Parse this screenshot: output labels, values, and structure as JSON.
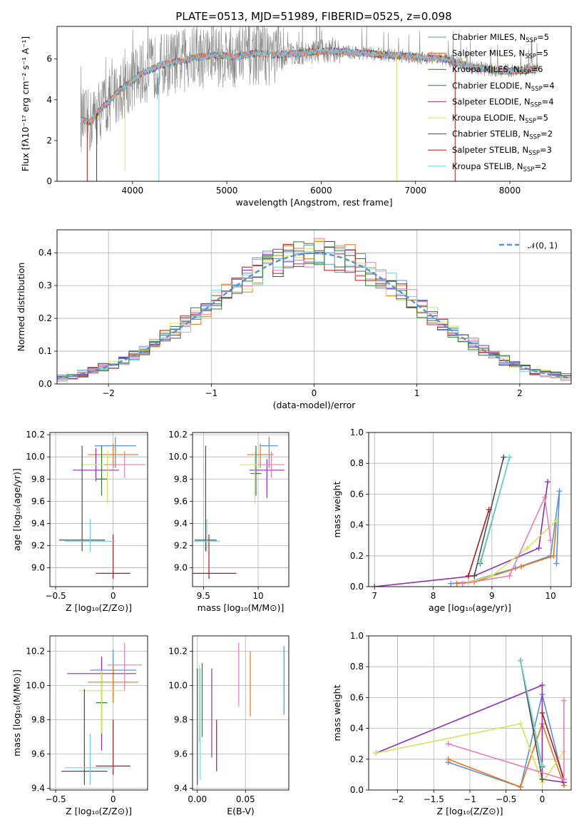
{
  "figure": {
    "title": "PLATE=0513, MJD=51989, FIBERID=0525, z=0.098"
  },
  "colors": [
    "#5b8fd8",
    "#e8761f",
    "#2f7d32",
    "#8c2fb5",
    "#d2e65a",
    "#4d4d4d",
    "#b01a1a",
    "#e57fb5",
    "#72d4de",
    "#888888"
  ],
  "legend_spectrum": [
    {
      "label": "Chabrier MILES, N",
      "sub": "SSP",
      "suffix": "=5",
      "color": "#5b8fd8"
    },
    {
      "label": "Salpeter MILES, N",
      "sub": "SSP",
      "suffix": "=5",
      "color": "#e8761f"
    },
    {
      "label": "Kroupa MILES, N",
      "sub": "SSP",
      "suffix": "=6",
      "color": "#2f7d32"
    },
    {
      "label": "Chabrier ELODIE, N",
      "sub": "SSP",
      "suffix": "=4",
      "color": "#2f7d32"
    },
    {
      "label": "Salpeter ELODIE, N",
      "sub": "SSP",
      "suffix": "=4",
      "color": "#8c2fb5"
    },
    {
      "label": "Kroupa ELODIE, N",
      "sub": "SSP",
      "suffix": "=5",
      "color": "#d2e65a"
    },
    {
      "label": "Chabrier STELIB, N",
      "sub": "SSP",
      "suffix": "=2",
      "color": "#4d4d4d"
    },
    {
      "label": "Salpeter STELIB, N",
      "sub": "SSP",
      "suffix": "=3",
      "color": "#b01a1a"
    },
    {
      "label": "Kroupa STELIB, N",
      "sub": "SSP",
      "suffix": "=2",
      "color": "#72d4de"
    }
  ],
  "chart_data": [
    {
      "id": "spectrum",
      "type": "line",
      "xlabel": "wavelength [Angstrom, rest frame]",
      "ylabel": "Flux [fλ10⁻¹⁷ erg cm⁻² s⁻¹ A⁻¹]",
      "xlim": [
        3200,
        8650
      ],
      "ylim": [
        0,
        7.6
      ],
      "xticks": [
        4000,
        5000,
        6000,
        7000,
        8000
      ],
      "yticks": [
        0,
        2,
        4,
        6
      ],
      "continuum": {
        "x": [
          3450,
          3550,
          3650,
          3750,
          3850,
          3950,
          4100,
          4300,
          4500,
          4700,
          4900,
          5100,
          5300,
          5500,
          5800,
          6100,
          6400,
          6700,
          7000,
          7300,
          7600,
          7900,
          8300
        ],
        "y": [
          3.0,
          2.9,
          3.5,
          3.9,
          4.4,
          4.8,
          5.3,
          5.7,
          5.9,
          6.1,
          6.2,
          6.1,
          6.3,
          6.2,
          6.3,
          6.4,
          6.3,
          6.2,
          6.1,
          6.0,
          5.6,
          5.4,
          5.5
        ]
      }
    },
    {
      "id": "residuals",
      "type": "histogram",
      "xlabel": "(data-model)/error",
      "ylabel": "Normed distribution",
      "xlim": [
        -2.5,
        2.5
      ],
      "ylim": [
        0,
        0.47
      ],
      "xticks": [
        -2,
        -1,
        0,
        1,
        2
      ],
      "yticks": [
        0.0,
        0.1,
        0.2,
        0.3,
        0.4
      ],
      "grid": true,
      "legend": {
        "label": "𝒩(0, 1)",
        "placement": "top-right"
      },
      "bin_width": 0.1
    },
    {
      "id": "age_vs_Z",
      "type": "errorbar",
      "xlabel": "Z [log₁₀(Z/Z⊙)]",
      "ylabel": "age  [log₁₀(age/yr)]",
      "xlim": [
        -0.55,
        0.3
      ],
      "ylim": [
        8.83,
        10.22
      ],
      "xticks": [
        -0.5,
        0.0
      ],
      "yticks": [
        9.0,
        9.2,
        9.4,
        9.6,
        9.8,
        10.0,
        10.2
      ],
      "grid": true,
      "points": [
        {
          "x": 0.02,
          "y": 10.1,
          "xerr": 0.18,
          "ylo": 0.2,
          "yhi": 0.08
        },
        {
          "x": 0.0,
          "y": 10.02,
          "xerr": 0.22,
          "ylo": 0.12,
          "yhi": 0.1
        },
        {
          "x": -0.1,
          "y": 9.8,
          "xerr": 0.05,
          "ylo": 0.15,
          "yhi": 0.3
        },
        {
          "x": -0.15,
          "y": 9.88,
          "xerr": 0.2,
          "ylo": 0.1,
          "yhi": 0.2
        },
        {
          "x": -0.05,
          "y": 9.93,
          "xerr": 0.22,
          "ylo": 0.35,
          "yhi": 0.12
        },
        {
          "x": -0.27,
          "y": 9.25,
          "xerr": 0.2,
          "ylo": 0.1,
          "yhi": 0.85
        },
        {
          "x": 0.0,
          "y": 8.95,
          "xerr": 0.15,
          "ylo": 0.05,
          "yhi": 0.35
        },
        {
          "x": 0.1,
          "y": 9.93,
          "xerr": 0.18,
          "ylo": 0.12,
          "yhi": 0.12
        },
        {
          "x": -0.2,
          "y": 9.24,
          "xerr": 0.22,
          "ylo": 0.1,
          "yhi": 0.2
        }
      ]
    },
    {
      "id": "age_vs_mass",
      "type": "errorbar",
      "xlabel": "mass [log₁₀(M/M⊙)]",
      "ylabel": "",
      "xlim": [
        9.4,
        10.28
      ],
      "ylim": [
        8.83,
        10.22
      ],
      "xticks": [
        9.5,
        10.0
      ],
      "yticks": [
        9.0,
        9.2,
        9.4,
        9.6,
        9.8,
        10.0,
        10.2
      ],
      "grid": true,
      "points": [
        {
          "x": 10.1,
          "y": 10.1,
          "xerr": 0.08,
          "ylo": 0.2,
          "yhi": 0.08
        },
        {
          "x": 10.02,
          "y": 10.02,
          "xerr": 0.12,
          "ylo": 0.12,
          "yhi": 0.1
        },
        {
          "x": 9.98,
          "y": 9.85,
          "xerr": 0.05,
          "ylo": 0.2,
          "yhi": 0.25
        },
        {
          "x": 10.08,
          "y": 9.88,
          "xerr": 0.16,
          "ylo": 0.25,
          "yhi": 0.1
        },
        {
          "x": 9.97,
          "y": 9.93,
          "xerr": 0.14,
          "ylo": 0.35,
          "yhi": 0.12
        },
        {
          "x": 9.52,
          "y": 9.25,
          "xerr": 0.1,
          "ylo": 0.1,
          "yhi": 0.85
        },
        {
          "x": 9.55,
          "y": 8.95,
          "xerr": 0.25,
          "ylo": 0.05,
          "yhi": 0.35
        },
        {
          "x": 10.12,
          "y": 9.93,
          "xerr": 0.12,
          "ylo": 0.12,
          "yhi": 0.12
        },
        {
          "x": 9.53,
          "y": 9.24,
          "xerr": 0.12,
          "ylo": 0.1,
          "yhi": 0.2
        }
      ]
    },
    {
      "id": "weight_vs_age",
      "type": "line",
      "xlabel": "age  [log₁₀(age/yr)]",
      "ylabel": "mass weight",
      "xlim": [
        6.9,
        10.35
      ],
      "ylim": [
        0.0,
        1.0
      ],
      "xticks": [
        7,
        8,
        9,
        10
      ],
      "yticks": [
        0.0,
        0.2,
        0.4,
        0.6,
        0.8,
        1.0
      ],
      "grid": true,
      "series": [
        {
          "x": [
            8.3,
            8.6,
            9.4,
            10.0,
            10.15,
            10.1
          ],
          "y": [
            0.02,
            0.03,
            0.12,
            0.2,
            0.62,
            0.15
          ]
        },
        {
          "x": [
            8.4,
            8.7,
            9.5,
            10.05,
            10.1
          ],
          "y": [
            0.02,
            0.03,
            0.13,
            0.2,
            0.43
          ]
        },
        {
          "x": [
            8.8,
            9.3
          ],
          "y": [
            0.15,
            0.84
          ]
        },
        {
          "x": [
            7.0,
            8.7,
            9.8,
            9.95
          ],
          "y": [
            0.0,
            0.07,
            0.25,
            0.68
          ]
        },
        {
          "x": [
            8.6,
            9.0,
            9.6,
            10.1
          ],
          "y": [
            0.03,
            0.07,
            0.25,
            0.43
          ]
        },
        {
          "x": [
            8.7,
            9.2
          ],
          "y": [
            0.07,
            0.84
          ]
        },
        {
          "x": [
            8.6,
            8.95
          ],
          "y": [
            0.07,
            0.5
          ]
        },
        {
          "x": [
            8.5,
            9.3,
            9.9,
            10.0
          ],
          "y": [
            0.02,
            0.07,
            0.58,
            0.3
          ]
        },
        {
          "x": [
            8.8,
            9.3
          ],
          "y": [
            0.16,
            0.84
          ]
        }
      ]
    },
    {
      "id": "mass_vs_Z",
      "type": "errorbar",
      "xlabel": "Z [log₁₀(Z/Z⊙)]",
      "ylabel": "mass [log₁₀(M/M⊙)]",
      "xlim": [
        -0.55,
        0.3
      ],
      "ylim": [
        9.39,
        10.29
      ],
      "xticks": [
        -0.5,
        0.0
      ],
      "yticks": [
        9.4,
        9.6,
        9.8,
        10.0,
        10.2
      ],
      "grid": true,
      "points": [
        {
          "x": 0.0,
          "y": 10.09,
          "xerr": 0.2,
          "ylo": 0.15,
          "yhi": 0.12
        },
        {
          "x": 0.0,
          "y": 10.02,
          "xerr": 0.22,
          "ylo": 0.12,
          "yhi": 0.1
        },
        {
          "x": -0.1,
          "y": 9.9,
          "xerr": 0.05,
          "ylo": 0.2,
          "yhi": 0.25
        },
        {
          "x": -0.1,
          "y": 10.07,
          "xerr": 0.3,
          "ylo": 0.45,
          "yhi": 0.1
        },
        {
          "x": -0.1,
          "y": 9.97,
          "xerr": 0.2,
          "ylo": 0.25,
          "yhi": 0.12
        },
        {
          "x": -0.25,
          "y": 9.5,
          "xerr": 0.2,
          "ylo": 0.08,
          "yhi": 0.48
        },
        {
          "x": 0.0,
          "y": 9.53,
          "xerr": 0.15,
          "ylo": 0.05,
          "yhi": 0.27
        },
        {
          "x": 0.1,
          "y": 10.12,
          "xerr": 0.15,
          "ylo": 0.15,
          "yhi": 0.13
        },
        {
          "x": -0.2,
          "y": 9.52,
          "xerr": 0.22,
          "ylo": 0.1,
          "yhi": 0.2
        }
      ]
    },
    {
      "id": "mass_vs_EBV",
      "type": "errorbar",
      "xlabel": "E(B-V)",
      "ylabel": "",
      "xlim": [
        -0.005,
        0.095
      ],
      "ylim": [
        9.39,
        10.29
      ],
      "xticks": [
        0.0,
        0.05
      ],
      "yticks": [
        9.4,
        9.6,
        9.8,
        10.0,
        10.2
      ],
      "grid": true,
      "points": [
        {
          "x": 0.09,
          "y": 10.05,
          "xerr": 0,
          "ylo": 0.22,
          "yhi": 0.18
        },
        {
          "x": 0.055,
          "y": 10.02,
          "xerr": 0,
          "ylo": 0.2,
          "yhi": 0.18
        },
        {
          "x": 0.005,
          "y": 9.9,
          "xerr": 0,
          "ylo": 0.2,
          "yhi": 0.23
        },
        {
          "x": 0.015,
          "y": 9.88,
          "xerr": 0,
          "ylo": 0.3,
          "yhi": 0.22
        },
        {
          "x": 0.002,
          "y": 9.97,
          "xerr": 0,
          "ylo": 0.3,
          "yhi": 0.15
        },
        {
          "x": 0.0,
          "y": 9.8,
          "xerr": 0,
          "ylo": 0.38,
          "yhi": 0.3
        },
        {
          "x": 0.02,
          "y": 9.65,
          "xerr": 0,
          "ylo": 0.15,
          "yhi": 0.15
        },
        {
          "x": 0.043,
          "y": 10.05,
          "xerr": 0,
          "ylo": 0.17,
          "yhi": 0.2
        },
        {
          "x": 0.003,
          "y": 9.7,
          "xerr": 0,
          "ylo": 0.25,
          "yhi": 0.4
        }
      ]
    },
    {
      "id": "weight_vs_Z",
      "type": "line",
      "xlabel": "Z [log₁₀(Z/Z⊙)]",
      "ylabel": "mass weight",
      "xlim": [
        -2.4,
        0.4
      ],
      "ylim": [
        0.0,
        1.0
      ],
      "xticks": [
        -2.0,
        -1.5,
        -1.0,
        -0.5,
        0.0
      ],
      "yticks": [
        0.0,
        0.2,
        0.4,
        0.6,
        0.8,
        1.0
      ],
      "grid": true,
      "series": [
        {
          "x": [
            -1.3,
            -0.3,
            0.0,
            0.3
          ],
          "y": [
            0.18,
            0.02,
            0.62,
            0.05
          ]
        },
        {
          "x": [
            -1.3,
            -0.3,
            0.0,
            0.3
          ],
          "y": [
            0.2,
            0.02,
            0.43,
            0.03
          ]
        },
        {
          "x": [
            -0.3,
            0.0
          ],
          "y": [
            0.84,
            0.15
          ]
        },
        {
          "x": [
            -2.3,
            0.0,
            0.0,
            0.3
          ],
          "y": [
            0.24,
            0.68,
            0.07,
            0.05
          ]
        },
        {
          "x": [
            -2.3,
            -0.3,
            0.0,
            0.3
          ],
          "y": [
            0.24,
            0.43,
            0.05,
            0.25
          ]
        },
        {
          "x": [
            -0.3,
            0.0
          ],
          "y": [
            0.84,
            0.07
          ]
        },
        {
          "x": [
            0.0,
            0.3
          ],
          "y": [
            0.5,
            0.07
          ]
        },
        {
          "x": [
            -1.3,
            0.3,
            0.3
          ],
          "y": [
            0.3,
            0.07,
            0.58
          ]
        },
        {
          "x": [
            -0.3,
            0.0
          ],
          "y": [
            0.84,
            0.16
          ]
        }
      ]
    }
  ]
}
